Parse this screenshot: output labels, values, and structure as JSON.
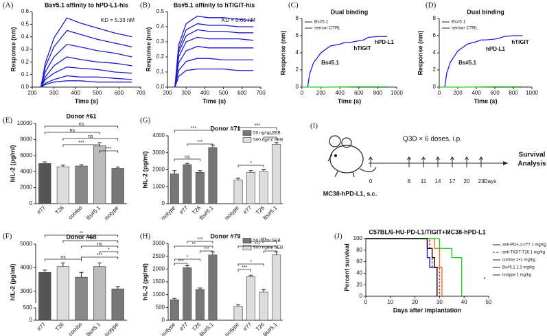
{
  "chart_data": [
    {
      "panel": "(A)",
      "type": "line",
      "title": "Bs#5.1 affinity to hPD-L1-his",
      "annotations": [
        "KD = 5.33 nM"
      ],
      "x_label": "Time (s)",
      "y_label": "Response (nm)",
      "x": [
        240,
        260,
        300,
        360,
        420,
        500,
        580,
        660
      ],
      "series": [
        {
          "color": "#1a1acc",
          "values": [
            0,
            0.19,
            0.39,
            0.55,
            0.51,
            0.47,
            0.43,
            0.4
          ]
        },
        {
          "color": "#1a1acc",
          "values": [
            0,
            0.16,
            0.32,
            0.45,
            0.42,
            0.38,
            0.35,
            0.32
          ]
        },
        {
          "color": "#1a1acc",
          "values": [
            0,
            0.12,
            0.24,
            0.34,
            0.32,
            0.29,
            0.27,
            0.24
          ]
        },
        {
          "color": "#1a1acc",
          "values": [
            0,
            0.08,
            0.17,
            0.24,
            0.22,
            0.2,
            0.19,
            0.17
          ]
        },
        {
          "color": "#1a1acc",
          "values": [
            0,
            0.06,
            0.11,
            0.16,
            0.15,
            0.14,
            0.12,
            0.11
          ]
        },
        {
          "color": "#1a1acc",
          "values": [
            0,
            0.03,
            0.06,
            0.09,
            0.08,
            0.08,
            0.07,
            0.06
          ]
        },
        {
          "color": "#1a1acc",
          "values": [
            0,
            0.02,
            0.04,
            0.05,
            0.05,
            0.04,
            0.04,
            0.04
          ]
        }
      ],
      "xlim": [
        200,
        700
      ],
      "xticks": [
        200,
        300,
        400,
        500,
        600,
        700
      ],
      "ylim": [
        0,
        0.6
      ],
      "yticks": [
        {
          "value": 0,
          "label": "0.0"
        },
        0.1,
        0.2,
        0.3,
        0.4,
        0.5,
        0.6
      ]
    },
    {
      "panel": "(B)",
      "type": "line",
      "title": "Bs#5.1 affinity to hTIGIT-his",
      "annotations": [
        "KD = 0.65 nM"
      ],
      "x_label": "Time (s)",
      "y_label": "Response (nm)",
      "x": [
        240,
        260,
        300,
        360,
        420,
        500,
        580,
        660
      ],
      "series": [
        {
          "color": "#1a1acc",
          "values": [
            0,
            0.28,
            0.42,
            0.47,
            0.46,
            0.46,
            0.45,
            0.44
          ]
        },
        {
          "color": "#1a1acc",
          "values": [
            0,
            0.25,
            0.38,
            0.42,
            0.41,
            0.41,
            0.4,
            0.4
          ]
        },
        {
          "color": "#1a1acc",
          "values": [
            0,
            0.23,
            0.34,
            0.38,
            0.37,
            0.37,
            0.36,
            0.36
          ]
        },
        {
          "color": "#1a1acc",
          "values": [
            0,
            0.2,
            0.3,
            0.33,
            0.32,
            0.32,
            0.32,
            0.31
          ]
        },
        {
          "color": "#1a1acc",
          "values": [
            0,
            0.16,
            0.24,
            0.27,
            0.26,
            0.26,
            0.26,
            0.26
          ]
        },
        {
          "color": "#1a1acc",
          "values": [
            0,
            0.11,
            0.17,
            0.19,
            0.19,
            0.18,
            0.18,
            0.18
          ]
        },
        {
          "color": "#1a1acc",
          "values": [
            0,
            0.07,
            0.11,
            0.12,
            0.12,
            0.12,
            0.11,
            0.11
          ]
        }
      ],
      "xlim": [
        200,
        700
      ],
      "xticks": [
        200,
        300,
        400,
        500,
        600,
        700
      ],
      "ylim": [
        0,
        0.5
      ],
      "yticks": [
        {
          "value": 0,
          "label": "0.0"
        },
        0.1,
        0.2,
        0.3,
        0.4,
        0.5
      ]
    },
    {
      "panel": "(C)",
      "type": "line",
      "title": "Dual binding",
      "annotations": [
        "Bs#5.1",
        "hTIGIT",
        "hPD-L1"
      ],
      "annotation_color": "#e02020",
      "x_label": "Time (s)",
      "y_label": "Response (nm)",
      "series": [
        {
          "name": "Bs#5.1",
          "color": "#1a1ae0",
          "x": [
            60,
            80,
            120,
            200,
            300,
            400,
            450,
            500,
            600,
            650,
            700,
            800,
            900
          ],
          "values": [
            0,
            1.5,
            2.8,
            4.0,
            4.8,
            5.0,
            5.2,
            5.2,
            5.4,
            5.5,
            5.8,
            5.9,
            5.9
          ]
        },
        {
          "name": "sensor CTRL",
          "color": "#22cc22",
          "x": [
            0,
            300,
            600,
            900
          ],
          "values": [
            0,
            0,
            0.05,
            0.05
          ]
        }
      ],
      "xlim": [
        0,
        1000
      ],
      "xticks": [
        0,
        200,
        400,
        600,
        800,
        1000
      ],
      "ylim": [
        0,
        8
      ],
      "yticks": [
        0,
        2,
        4,
        6,
        8
      ]
    },
    {
      "panel": "(D)",
      "type": "line",
      "title": "Dual binding",
      "annotations": [
        "Bs#5.1",
        "hPD-L1",
        "hTIGIT"
      ],
      "annotation_color": "#e02020",
      "x_label": "Time (s)",
      "y_label": "Response (nm)",
      "series": [
        {
          "name": "Bs#5.1",
          "color": "#1a1ae0",
          "x": [
            60,
            80,
            120,
            200,
            300,
            400,
            450,
            500,
            600,
            650,
            700,
            800,
            900
          ],
          "values": [
            0,
            1.6,
            2.9,
            4.2,
            5.0,
            5.3,
            5.5,
            5.5,
            5.6,
            5.7,
            5.9,
            6.0,
            6.0
          ]
        },
        {
          "name": "sensor CTRL",
          "color": "#22cc22",
          "x": [
            0,
            300,
            600,
            900
          ],
          "values": [
            0,
            0,
            0.05,
            0.05
          ]
        }
      ],
      "xlim": [
        0,
        1000
      ],
      "xticks": [
        0,
        200,
        400,
        600,
        800,
        1000
      ],
      "ylim": [
        0,
        8
      ],
      "yticks": [
        0,
        2,
        4,
        6,
        8
      ]
    },
    {
      "panel": "(E)",
      "type": "bar",
      "title": "Donor #61",
      "y_label": "hIL-2 (pg/ml)",
      "categories": [
        "#77",
        "T26",
        "combo",
        "Bs#5.1",
        "isotype"
      ],
      "values": [
        5000,
        4600,
        4700,
        7200,
        4400
      ],
      "errors": [
        200,
        200,
        150,
        400,
        150
      ],
      "colors": [
        "#555555",
        "#dddddd",
        "#888888",
        "#bbbbbb",
        "#777777"
      ],
      "annotations": [
        "ns",
        "ns",
        "ns",
        "***",
        "***"
      ],
      "ylim": [
        0,
        10000
      ],
      "yticks": [
        0,
        2000,
        4000,
        6000,
        8000,
        10000
      ]
    },
    {
      "panel": "(G)",
      "type": "bar",
      "title": "Donor #71",
      "y_label": "hIL-2 (pg/ml)",
      "categories": [
        "isotype",
        "#77",
        "T26",
        "Bs#5.1"
      ],
      "series": [
        {
          "name": "50 ng/ml SEB",
          "color": "#777777",
          "values": [
            1750,
            2300,
            1850,
            3300
          ],
          "errors": [
            200,
            80,
            100,
            150
          ]
        },
        {
          "name": "500 ng/ml SEB",
          "color": "#dddddd",
          "values": [
            1400,
            1850,
            1900,
            3500
          ],
          "errors": [
            100,
            100,
            100,
            100
          ]
        }
      ],
      "annotations": [
        "***",
        "ns",
        "***",
        "***",
        "***",
        "*"
      ],
      "ylim": [
        0,
        4000
      ],
      "yticks": [
        0,
        1000,
        2000,
        3000,
        4000
      ]
    },
    {
      "panel": "(F)",
      "type": "bar",
      "title": "Donor #68",
      "y_label": "hIL-2 (pg/ml)",
      "categories": [
        "#77",
        "T26",
        "combo",
        "Bs#5.1",
        "isotype"
      ],
      "values": [
        3800,
        4050,
        3600,
        4050,
        3100
      ],
      "errors": [
        100,
        150,
        200,
        150,
        100
      ],
      "colors": [
        "#555555",
        "#dddddd",
        "#888888",
        "#bbbbbb",
        "#777777"
      ],
      "annotations": [
        "**",
        "**",
        "ns",
        "ns",
        "*",
        "***"
      ],
      "ylim": [
        2500,
        5000
      ],
      "yticks": [
        3000,
        4000,
        5000
      ],
      "ylim_lower": [
        0,
        500
      ],
      "yticks_lower": [
        0,
        500
      ]
    },
    {
      "panel": "(H)",
      "type": "bar",
      "title": "Donor #79",
      "y_label": "hIL-2 (pg/ml)",
      "categories": [
        "isotype",
        "#77",
        "T26",
        "Bs#5.1"
      ],
      "series": [
        {
          "name": "50 ng/ml SEB",
          "color": "#777777",
          "values": [
            800,
            2050,
            1200,
            2550
          ],
          "errors": [
            50,
            80,
            60,
            120
          ]
        },
        {
          "name": "500 ng/ml SEB",
          "color": "#dddddd",
          "values": [
            550,
            1700,
            1100,
            2550
          ],
          "errors": [
            50,
            60,
            100,
            120
          ]
        }
      ],
      "annotations": [
        "***",
        "**",
        "***",
        "*",
        "***",
        "***",
        "***",
        "***",
        "*",
        "***"
      ],
      "ylim": [
        0,
        3000
      ],
      "yticks": [
        0,
        500,
        1000,
        1500,
        2000,
        2500,
        3000
      ]
    },
    {
      "panel": "(J)",
      "type": "step",
      "title": "C57BL/6-HU-PD-L1/TIGIT+MC38-hPD-L1",
      "annotations": [
        "*"
      ],
      "x_label": "Days after implantation",
      "y_label": "Percent survival",
      "series": [
        {
          "name": "anti-PD-L1-#77 1 mg/kg",
          "color": "#1a1ae0",
          "x": [
            0,
            25,
            26,
            29
          ],
          "values": [
            100,
            67,
            50,
            0
          ]
        },
        {
          "name": "anti-TIGIT-T26 1 mg/kg",
          "color": "#e02020",
          "dash": true,
          "x": [
            0,
            26,
            27,
            30
          ],
          "values": [
            100,
            83,
            50,
            0
          ]
        },
        {
          "name": "combo 1+1 mg/kg",
          "color": "#f07020",
          "x": [
            0,
            28,
            30,
            31
          ],
          "values": [
            100,
            83,
            50,
            0
          ]
        },
        {
          "name": "Bs#5.1 1.3 mg/kg",
          "color": "#22cc22",
          "x": [
            0,
            30,
            35,
            39
          ],
          "values": [
            100,
            83,
            67,
            0
          ]
        },
        {
          "name": "isotype 1 mg/kg",
          "color": "#111111",
          "x": [
            0,
            25,
            27,
            28,
            29
          ],
          "values": [
            100,
            83,
            67,
            50,
            0
          ]
        }
      ],
      "xlim": [
        0,
        50
      ],
      "xticks": [
        0,
        10,
        20,
        30,
        40,
        50
      ],
      "ylim": [
        0,
        100
      ],
      "yticks": [
        0,
        20,
        40,
        60,
        80,
        100
      ]
    }
  ],
  "diagram": {
    "panel": "(I)",
    "schedule": "Q3D × 6 doses, i.p.",
    "endpoint": [
      "Survival",
      "Analysis"
    ],
    "model": "MC38-hPD-L1, s.c.",
    "days": [
      0,
      8,
      11,
      14,
      17,
      20,
      23
    ],
    "unit": "Days"
  }
}
